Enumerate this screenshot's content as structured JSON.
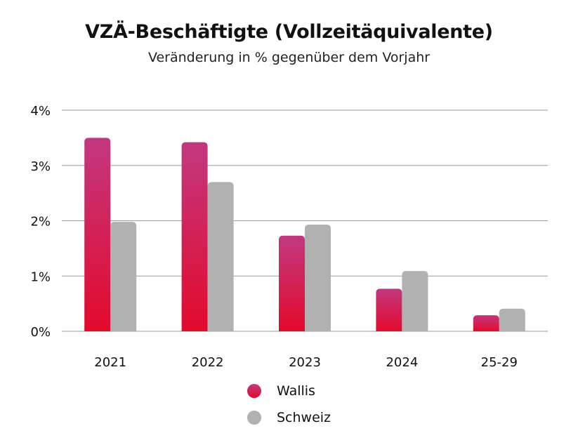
{
  "chart_data": {
    "type": "bar",
    "title": "VZÄ-Beschäftigte (Vollzeitäquivalente)",
    "subtitle": "Veränderung in % gegenüber dem Vorjahr",
    "xlabel": "",
    "ylabel": "",
    "categories": [
      "2021",
      "2022",
      "2023",
      "2024",
      "25-29"
    ],
    "series": [
      {
        "name": "Wallis",
        "values": [
          3.5,
          3.42,
          1.73,
          0.77,
          0.29
        ]
      },
      {
        "name": "Schweiz",
        "values": [
          1.98,
          2.7,
          1.93,
          1.09,
          0.41
        ]
      }
    ],
    "ylim": [
      0,
      4
    ],
    "yticks": [
      0,
      1,
      2,
      3,
      4
    ],
    "ytick_labels": [
      "0%",
      "1%",
      "2%",
      "3%",
      "4%"
    ],
    "grid": true,
    "legend_position": "bottom-center",
    "colors": {
      "wallis_top": "#c2387f",
      "wallis_bottom": "#e30a2c",
      "schweiz": "#b1b1b1",
      "gridline": "#9a9a9a"
    }
  }
}
